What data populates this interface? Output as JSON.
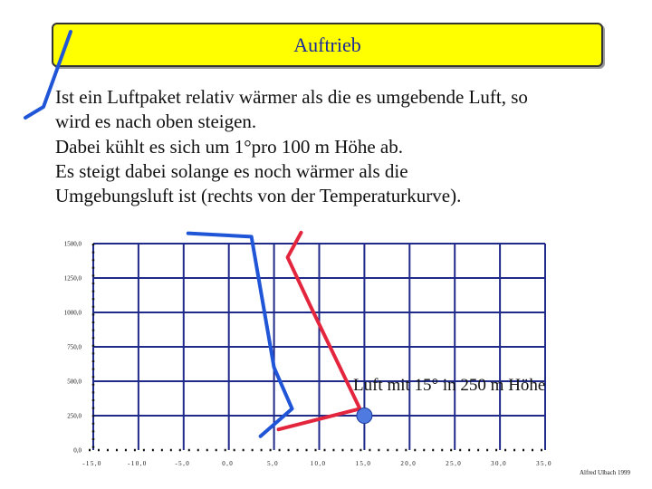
{
  "title": "Auftrieb",
  "body_lines": [
    "Ist ein Luftpaket relativ wärmer als die es umgebende Luft, so",
    "wird es nach oben steigen.",
    "Dabei kühlt es sich um 1°pro 100 m Höhe ab.",
    "Es steigt dabei solange es noch wärmer als die",
    "Umgebungsluft ist (rechts von der Temperaturkurve)."
  ],
  "annotation": "Luft mit 15° in 250 m Höhe",
  "credit": "Alfred Ulbach 1999",
  "colors": {
    "title_bg": "#ffff00",
    "title_text": "#1a2a9a",
    "grid": "#1f2a8a",
    "temperature_curve": "#e3263e",
    "parcel_curve": "#1f55d6",
    "parcel_marker": "#4f7be0",
    "left_bracket": "#1f55d6"
  },
  "chart_data": {
    "type": "line",
    "x_ticks": [
      "-15,0",
      "-10,0",
      "-5,0",
      "0,0",
      "5,0",
      "10,0",
      "15,0",
      "20,0",
      "25,0",
      "30,0",
      "35,0"
    ],
    "y_ticks": [
      "0,0",
      "250,0",
      "500,0",
      "750,0",
      "1000,0",
      "1250,0",
      "1500,0"
    ],
    "xlim": [
      -15,
      35
    ],
    "ylim": [
      0,
      1500
    ],
    "grid": true,
    "series": [
      {
        "key": "temperature_curve",
        "points": [
          [
            5.5,
            150
          ],
          [
            14.5,
            300
          ],
          [
            9.0,
            1050
          ],
          [
            6.5,
            1400
          ],
          [
            8.0,
            1580
          ]
        ]
      },
      {
        "key": "parcel_curve",
        "points": [
          [
            3.5,
            100
          ],
          [
            7.0,
            300
          ],
          [
            5.0,
            600
          ],
          [
            2.5,
            1550
          ],
          [
            -4.5,
            1575
          ]
        ]
      }
    ],
    "marker": {
      "x": 15,
      "y": 250
    }
  }
}
